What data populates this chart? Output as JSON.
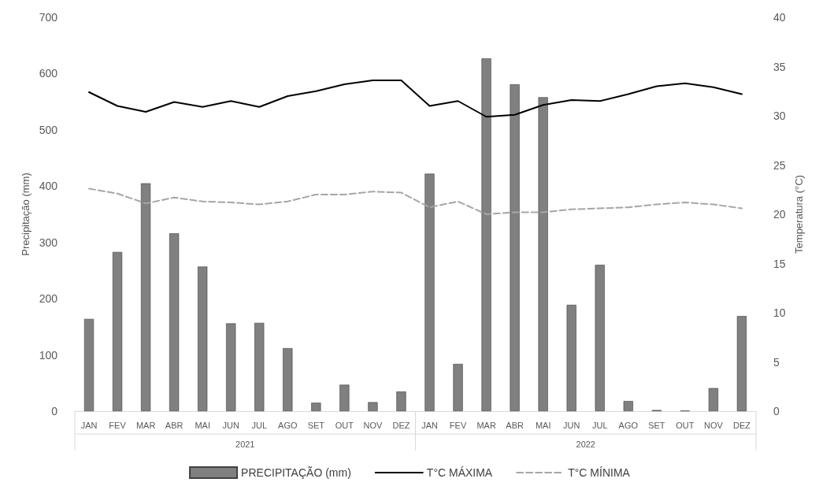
{
  "chart_data": {
    "type": "bar",
    "categories": [
      "JAN",
      "FEV",
      "MAR",
      "ABR",
      "MAI",
      "JUN",
      "JUL",
      "AGO",
      "SET",
      "OUT",
      "NOV",
      "DEZ",
      "JAN",
      "FEV",
      "MAR",
      "ABR",
      "MAI",
      "JUN",
      "JUL",
      "AGO",
      "SET",
      "OUT",
      "NOV",
      "DEZ"
    ],
    "series": [
      {
        "name": "PRECIPITAÇÃO (mm)",
        "color": "#808080",
        "values": [
          164,
          283,
          405,
          316,
          257,
          156,
          157,
          112,
          15,
          47,
          16,
          35,
          422,
          84,
          627,
          581,
          558,
          189,
          260,
          18,
          2,
          1,
          41,
          169
        ]
      },
      {
        "name": "T°C MÁXIMA",
        "type": "line",
        "axis": "y2",
        "color": "#000000",
        "line_style": "solid",
        "values": [
          32.4,
          31.0,
          30.4,
          31.4,
          30.9,
          31.5,
          30.9,
          32.0,
          32.5,
          33.2,
          33.6,
          33.6,
          31.0,
          31.5,
          29.9,
          30.1,
          31.1,
          31.6,
          31.5,
          32.2,
          33.0,
          33.3,
          32.9,
          32.2
        ]
      },
      {
        "name": "T°C MÍNIMA",
        "type": "line",
        "axis": "y2",
        "color": "#a6a6a6",
        "line_style": "dashed",
        "values": [
          22.6,
          22.1,
          21.1,
          21.7,
          21.3,
          21.2,
          21.0,
          21.3,
          22.0,
          22.0,
          22.3,
          22.2,
          20.7,
          21.3,
          20.0,
          20.2,
          20.2,
          20.5,
          20.6,
          20.7,
          21.0,
          21.2,
          21.0,
          20.6
        ]
      }
    ],
    "ylabel": "Precipitação (mm)",
    "y2label": "Temperatura (°C)",
    "ylim": [
      0,
      700
    ],
    "yticks": [
      0,
      100,
      200,
      300,
      400,
      500,
      600,
      700
    ],
    "y2lim": [
      0,
      40
    ],
    "y2ticks": [
      0,
      5,
      10,
      15,
      20,
      25,
      30,
      35,
      40
    ],
    "annotations": [
      "2021",
      "2022"
    ],
    "marker": "none",
    "grid": false,
    "legend": "bottom"
  }
}
